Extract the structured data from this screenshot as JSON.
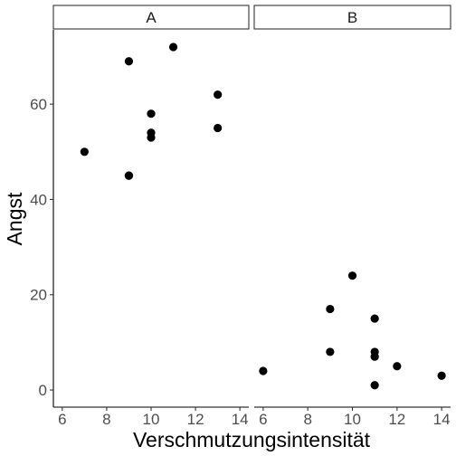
{
  "chart_data": {
    "type": "scatter",
    "xlabel": "Verschmutzungsintensität",
    "ylabel": "Angst",
    "xlim": [
      5.6,
      14.4
    ],
    "ylim": [
      -3.6,
      75.6
    ],
    "x_ticks": [
      6,
      8,
      10,
      12,
      14
    ],
    "y_ticks": [
      0,
      20,
      40,
      60
    ],
    "grid": false,
    "legend": "none",
    "point_color": "#000000",
    "panels": [
      {
        "label": "A",
        "points": [
          {
            "x": 7,
            "y": 50
          },
          {
            "x": 9,
            "y": 69
          },
          {
            "x": 9,
            "y": 45
          },
          {
            "x": 9,
            "y": 45
          },
          {
            "x": 10,
            "y": 58
          },
          {
            "x": 10,
            "y": 54
          },
          {
            "x": 10,
            "y": 53
          },
          {
            "x": 11,
            "y": 72
          },
          {
            "x": 13,
            "y": 62
          },
          {
            "x": 13,
            "y": 55
          }
        ]
      },
      {
        "label": "B",
        "points": [
          {
            "x": 6,
            "y": 4
          },
          {
            "x": 9,
            "y": 17
          },
          {
            "x": 9,
            "y": 8
          },
          {
            "x": 10,
            "y": 24
          },
          {
            "x": 11,
            "y": 15
          },
          {
            "x": 11,
            "y": 8
          },
          {
            "x": 11,
            "y": 7
          },
          {
            "x": 11,
            "y": 1
          },
          {
            "x": 12,
            "y": 5
          },
          {
            "x": 14,
            "y": 3
          }
        ]
      }
    ]
  }
}
